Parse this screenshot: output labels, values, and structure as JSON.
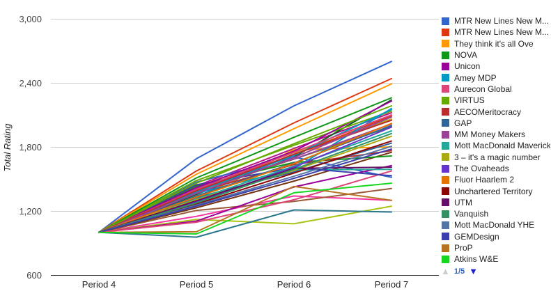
{
  "chart_data": {
    "type": "line",
    "title": "",
    "ylabel": "Total Rating",
    "xlabel": "",
    "x_categories": [
      "Period 4",
      "Period 5",
      "Period 6",
      "Period 7"
    ],
    "y_ticks": [
      {
        "label": "600",
        "value": 600
      },
      {
        "label": "1,200",
        "value": 1200
      },
      {
        "label": "1,800",
        "value": 1800
      },
      {
        "label": "2,400",
        "value": 2400
      },
      {
        "label": "3,000",
        "value": 3000
      }
    ],
    "ylim": [
      600,
      3000
    ],
    "grid": true,
    "legend_position": "right",
    "series": [
      {
        "name": "MTR New Lines New M...",
        "color": "#3366cc",
        "values": [
          1000,
          1690,
          2185,
          2600
        ]
      },
      {
        "name": "MTR New Lines New M...",
        "color": "#dc3912",
        "values": [
          1000,
          1575,
          2025,
          2440
        ]
      },
      {
        "name": "They think it's all Ove",
        "color": "#ff9900",
        "values": [
          1000,
          1545,
          1970,
          2390
        ]
      },
      {
        "name": "NOVA",
        "color": "#109618",
        "values": [
          1000,
          1510,
          1890,
          2260
        ]
      },
      {
        "name": "Unicon",
        "color": "#990099",
        "values": [
          1000,
          1420,
          1760,
          2230
        ]
      },
      {
        "name": "Amey MDP",
        "color": "#0099c6",
        "values": [
          1000,
          1380,
          1720,
          2150
        ]
      },
      {
        "name": "Aurecon Global",
        "color": "#dd4477",
        "values": [
          1000,
          1400,
          1750,
          2100
        ]
      },
      {
        "name": "VIRTUS",
        "color": "#66aa00",
        "values": [
          1000,
          1460,
          1830,
          2185
        ]
      },
      {
        "name": "AECOMeritocracy",
        "color": "#b82e2e",
        "values": [
          1000,
          1390,
          1730,
          2050
        ]
      },
      {
        "name": "GAP",
        "color": "#316395",
        "values": [
          1000,
          1340,
          1650,
          2000
        ]
      },
      {
        "name": "MM Money Makers",
        "color": "#994499",
        "values": [
          1000,
          1365,
          1700,
          2080
        ]
      },
      {
        "name": "Mott MacDonald Maverick",
        "color": "#22aa99",
        "values": [
          1000,
          1310,
          1620,
          1950
        ]
      },
      {
        "name": "3 – it's a magic number",
        "color": "#aaaa11",
        "values": [
          1000,
          1305,
          1580,
          1900
        ]
      },
      {
        "name": "The Ovaheads",
        "color": "#6633cc",
        "values": [
          1000,
          1285,
          1610,
          1985
        ]
      },
      {
        "name": "Fluor Haarlem 2",
        "color": "#e67300",
        "values": [
          1000,
          1330,
          1645,
          2020
        ]
      },
      {
        "name": "Unchartered Territory",
        "color": "#8b0707",
        "values": [
          1000,
          1265,
          1555,
          1855
        ]
      },
      {
        "name": "UTM",
        "color": "#651067",
        "values": [
          1000,
          1295,
          1600,
          1610
        ]
      },
      {
        "name": "Vanquish",
        "color": "#329262",
        "values": [
          1000,
          1275,
          1590,
          1925
        ]
      },
      {
        "name": "Mott MacDonald YHE",
        "color": "#5574a6",
        "values": [
          1000,
          1255,
          1525,
          1805
        ]
      },
      {
        "name": "GEMDesign",
        "color": "#3b3eac",
        "values": [
          1000,
          1245,
          1505,
          1780
        ]
      },
      {
        "name": "ProP",
        "color": "#b77322",
        "values": [
          1000,
          1005,
          1430,
          1300
        ]
      },
      {
        "name": "Atkins W&E",
        "color": "#16d620",
        "values": [
          1000,
          985,
          1370,
          1460
        ]
      }
    ],
    "other_series": [
      {
        "color": "#b91383",
        "values": [
          1000,
          1435,
          1785,
          2120
        ]
      },
      {
        "color": "#f4359e",
        "values": [
          1000,
          1150,
          1340,
          1300
        ]
      },
      {
        "color": "#9c5935",
        "values": [
          1000,
          1205,
          1290,
          1410
        ]
      },
      {
        "color": "#a9c413",
        "values": [
          1000,
          1120,
          1080,
          1245
        ]
      },
      {
        "color": "#2a778d",
        "values": [
          1000,
          955,
          1210,
          1190
        ]
      },
      {
        "color": "#668d1c",
        "values": [
          1000,
          1385,
          1685,
          1990
        ]
      },
      {
        "color": "#bea413",
        "values": [
          1000,
          1425,
          1745,
          2060
        ]
      },
      {
        "color": "#0c5922",
        "values": [
          1000,
          1355,
          1705,
          2240
        ]
      },
      {
        "color": "#743411",
        "values": [
          1000,
          1230,
          1480,
          1750
        ]
      },
      {
        "color": "#3366cc",
        "values": [
          1000,
          1470,
          1705,
          1515
        ]
      },
      {
        "color": "#dc3912",
        "values": [
          1000,
          1405,
          1725,
          2090
        ]
      },
      {
        "color": "#ff9900",
        "values": [
          1000,
          1315,
          1775,
          1800
        ]
      },
      {
        "color": "#109618",
        "values": [
          1000,
          1435,
          1655,
          1715
        ]
      },
      {
        "color": "#990099",
        "values": [
          1000,
          1105,
          1425,
          1625
        ]
      },
      {
        "color": "#0099c6",
        "values": [
          1000,
          1365,
          1595,
          2160
        ]
      },
      {
        "color": "#dd4477",
        "values": [
          1000,
          1095,
          1305,
          1575
        ]
      },
      {
        "color": "#66aa00",
        "values": [
          1000,
          1485,
          1815,
          2135
        ]
      },
      {
        "color": "#b82e2e",
        "values": [
          1000,
          1375,
          1635,
          1765
        ]
      },
      {
        "color": "#316395",
        "values": [
          1000,
          1325,
          1565,
          1835
        ]
      },
      {
        "color": "#994499",
        "values": [
          1000,
          1415,
          1685,
          2015
        ]
      },
      {
        "color": "#22aa99",
        "values": [
          1000,
          1290,
          1585,
          1590
        ]
      },
      {
        "color": "#3b3eac",
        "values": [
          1000,
          1445,
          1605,
          1530
        ]
      }
    ],
    "colors": {
      "gridline": "#cccccc",
      "baseline": "#333333",
      "y_tick_text": "#444444",
      "x_tick_text": "#222222",
      "legend_text": "#222222"
    }
  },
  "legend": {
    "pagination": {
      "label": "1/5",
      "up_icon": "▲",
      "down_icon": "▼",
      "up_color": "#cccccc",
      "down_color": "#2323cc"
    }
  }
}
